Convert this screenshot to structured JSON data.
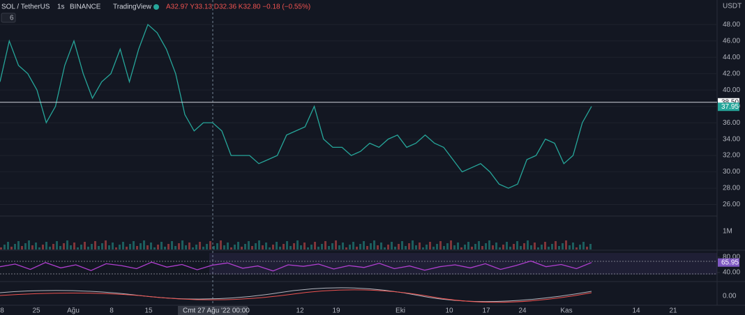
{
  "header": {
    "symbol": "SOL / TetherUS",
    "interval": "1s",
    "exchange": "BINANCE",
    "source": "TradingView",
    "ohlc": "A32.97 Y33.13 D32.36 K32.80 −0.18 (−0.55%)",
    "indicators": "6",
    "currency": "USDT"
  },
  "chart_data": [
    {
      "type": "line",
      "color": "#26a69a",
      "ylim": [
        24.6,
        51
      ],
      "yticks": [
        {
          "value": 26,
          "label": "26.00"
        },
        {
          "value": 28,
          "label": "28.00"
        },
        {
          "value": 30,
          "label": "30.00"
        },
        {
          "value": 32,
          "label": "32.00"
        },
        {
          "value": 34,
          "label": "34.00"
        },
        {
          "value": 36,
          "label": "36.00"
        },
        {
          "value": 38,
          "label": "38.00"
        },
        {
          "value": 40,
          "label": "40.00"
        },
        {
          "value": 42,
          "label": "42.00"
        },
        {
          "value": 44,
          "label": "44.00"
        },
        {
          "value": 46,
          "label": "46.00"
        },
        {
          "value": 48,
          "label": "48.00"
        }
      ],
      "values": [
        41,
        46,
        43,
        42,
        40,
        36,
        38,
        43,
        46,
        42,
        39,
        41,
        42,
        45,
        41,
        45,
        48,
        47,
        45,
        42,
        37,
        35,
        36,
        36,
        35,
        32,
        32,
        32,
        31,
        31.5,
        32,
        34.5,
        35,
        35.5,
        38,
        34,
        33,
        33,
        32,
        32.5,
        33.5,
        33,
        34,
        34.5,
        33,
        33.5,
        34.5,
        33.5,
        33,
        31.5,
        30,
        30.5,
        31,
        30,
        28.5,
        28,
        28.5,
        31.5,
        32,
        34,
        33.5,
        31,
        32,
        36,
        38
      ],
      "price_lines": [
        {
          "value": 38.5,
          "label": "38.50"
        },
        {
          "value": 37.95,
          "label": "37.95"
        }
      ],
      "volume_label": "1M",
      "x_labels": [
        "8",
        "25",
        "Ağu",
        "8",
        "15",
        "12",
        "19",
        "Eki",
        "10",
        "17",
        "24",
        "Kas",
        "14",
        "21"
      ],
      "crosshair_label": "Cmt 27 Ağu '22  00:00"
    },
    {
      "type": "line",
      "color": "#b03fd0",
      "ylim": [
        23.6,
        96.4
      ],
      "yticks": [
        {
          "value": 40,
          "label": "40.00"
        },
        {
          "value": 80,
          "label": "80.00"
        }
      ],
      "values": [
        55,
        62,
        48,
        66,
        52,
        60,
        45,
        63,
        58,
        50,
        67,
        54,
        61,
        47,
        59,
        65,
        51,
        57,
        44,
        60,
        56,
        62,
        49,
        58,
        53,
        64,
        50,
        57,
        46,
        55,
        60,
        52,
        63,
        48,
        58,
        70,
        55,
        61,
        50,
        66
      ],
      "last": {
        "value": 65.95,
        "label": "65.95"
      },
      "osc_label": "0.00"
    }
  ]
}
